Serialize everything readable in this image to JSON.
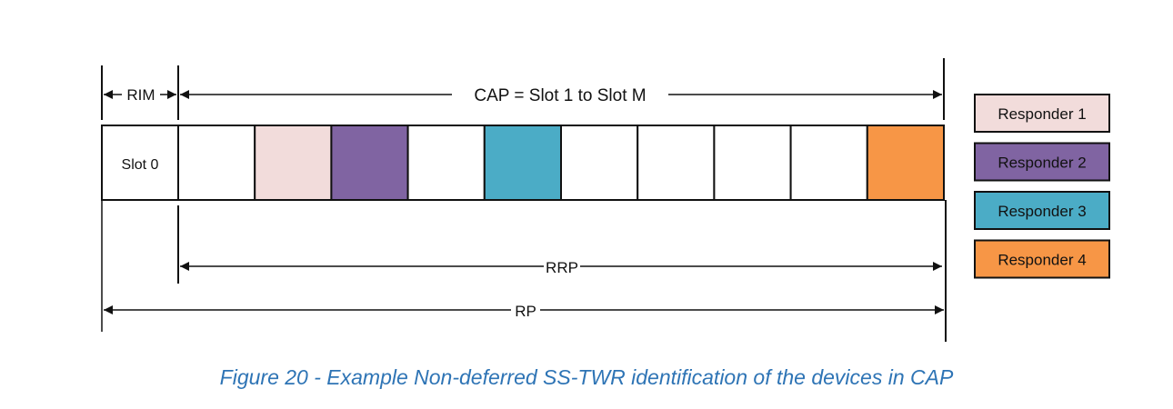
{
  "diagram": {
    "rim_label": "RIM",
    "cap_label": "CAP = Slot 1 to Slot M",
    "rrp_label": "RRP",
    "rp_label": "RP",
    "slot0_label": "Slot 0",
    "slots": [
      {
        "responder": null
      },
      {
        "responder": 1
      },
      {
        "responder": 2
      },
      {
        "responder": null
      },
      {
        "responder": 3
      },
      {
        "responder": null
      },
      {
        "responder": null
      },
      {
        "responder": null
      },
      {
        "responder": null
      },
      {
        "responder": 4
      }
    ]
  },
  "legend": [
    {
      "label": "Responder 1",
      "color": "#f2dcdb"
    },
    {
      "label": "Responder 2",
      "color": "#8064a2"
    },
    {
      "label": "Responder 3",
      "color": "#4bacc6"
    },
    {
      "label": "Responder 4",
      "color": "#f79646"
    }
  ],
  "caption": "Figure 20 - Example Non-deferred SS-TWR identification of the devices in CAP"
}
